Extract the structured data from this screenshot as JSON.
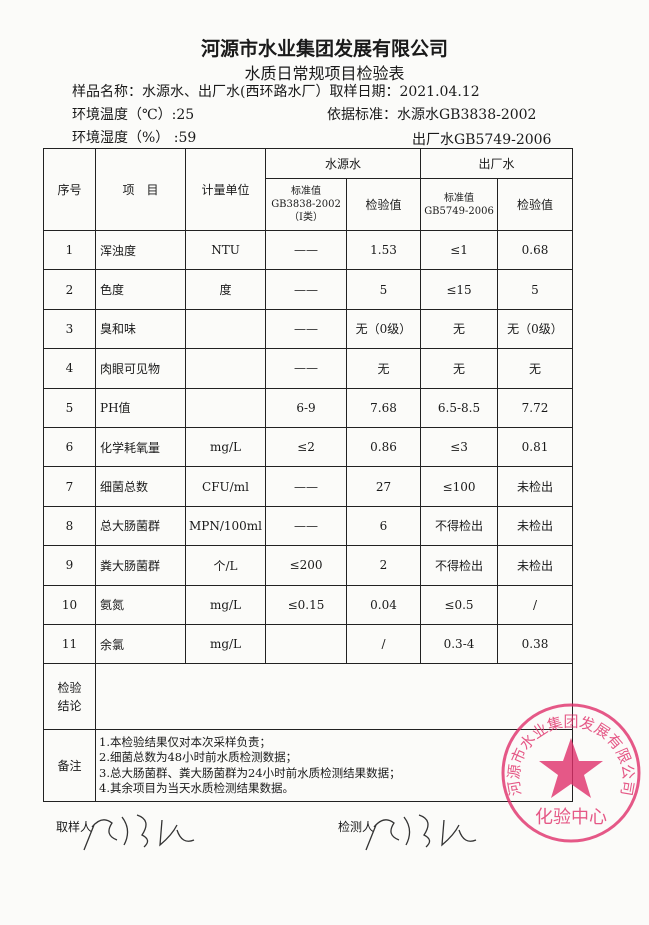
{
  "header": {
    "company": "河源市水业集团发展有限公司",
    "form_title": "水质日常规项目检验表",
    "sample_name": "样品名称：水源水、出厂水(西环路水厂）取样日期：2021.04.12",
    "temperature": "环境温度（℃）:25",
    "humidity": "环境湿度（%）  :59",
    "standard_line1": "依据标准：水源水GB3838-2002",
    "standard_line2": "出厂水GB5749-2006"
  },
  "table": {
    "headers": {
      "no": "序号",
      "item": "项　目",
      "unit": "计量单位",
      "source_water": "水源水",
      "factory_water": "出厂水",
      "std_label": "标准值",
      "source_std": "GB3838-2002",
      "source_std_class": "（Ⅰ类）",
      "factory_std": "GB5749-2006",
      "test_value": "检验值"
    },
    "rows": [
      {
        "no": "1",
        "item": "浑浊度",
        "unit": "NTU",
        "src_std": "——",
        "src_val": "1.53",
        "fac_std": "≤1",
        "fac_val": "0.68"
      },
      {
        "no": "2",
        "item": "色度",
        "unit": "度",
        "src_std": "——",
        "src_val": "5",
        "fac_std": "≤15",
        "fac_val": "5"
      },
      {
        "no": "3",
        "item": "臭和味",
        "unit": "",
        "src_std": "——",
        "src_val": "无（0级）",
        "fac_std": "无",
        "fac_val": "无（0级）"
      },
      {
        "no": "4",
        "item": "肉眼可见物",
        "unit": "",
        "src_std": "——",
        "src_val": "无",
        "fac_std": "无",
        "fac_val": "无"
      },
      {
        "no": "5",
        "item": "PH值",
        "unit": "",
        "src_std": "6-9",
        "src_val": "7.68",
        "fac_std": "6.5-8.5",
        "fac_val": "7.72"
      },
      {
        "no": "6",
        "item": "化学耗氧量",
        "unit": "mg/L",
        "src_std": "≤2",
        "src_val": "0.86",
        "fac_std": "≤3",
        "fac_val": "0.81"
      },
      {
        "no": "7",
        "item": "细菌总数",
        "unit": "CFU/ml",
        "src_std": "——",
        "src_val": "27",
        "fac_std": "≤100",
        "fac_val": "未检出"
      },
      {
        "no": "8",
        "item": "总大肠菌群",
        "unit": "MPN/100ml",
        "src_std": "——",
        "src_val": "6",
        "fac_std": "不得检出",
        "fac_val": "未检出"
      },
      {
        "no": "9",
        "item": "粪大肠菌群",
        "unit": "个/L",
        "src_std": "≤200",
        "src_val": "2",
        "fac_std": "不得检出",
        "fac_val": "未检出"
      },
      {
        "no": "10",
        "item": "氨氮",
        "unit": "mg/L",
        "src_std": "≤0.15",
        "src_val": "0.04",
        "fac_std": "≤0.5",
        "fac_val": "/"
      },
      {
        "no": "11",
        "item": "余氯",
        "unit": "mg/L",
        "src_std": "",
        "src_val": "/",
        "fac_std": "0.3-4",
        "fac_val": "0.38"
      }
    ],
    "conclusion_label": "检验结论",
    "conclusion_value": "",
    "notes_label": "备注",
    "notes": [
      "1.本检验结果仅对本次采样负责；",
      "2.细菌总数为48小时前水质检测数据；",
      "3.总大肠菌群、粪大肠菌群为24小时前水质检测结果数据；",
      "4.其余项目为当天水质检测结果数据。"
    ]
  },
  "footer": {
    "sampler_label": "取样人",
    "tester_label": "检测人"
  },
  "stamp": {
    "text_ring": "河源市水业集团发展有限公司",
    "text_center": "化验中心",
    "color": "#e0306a"
  }
}
